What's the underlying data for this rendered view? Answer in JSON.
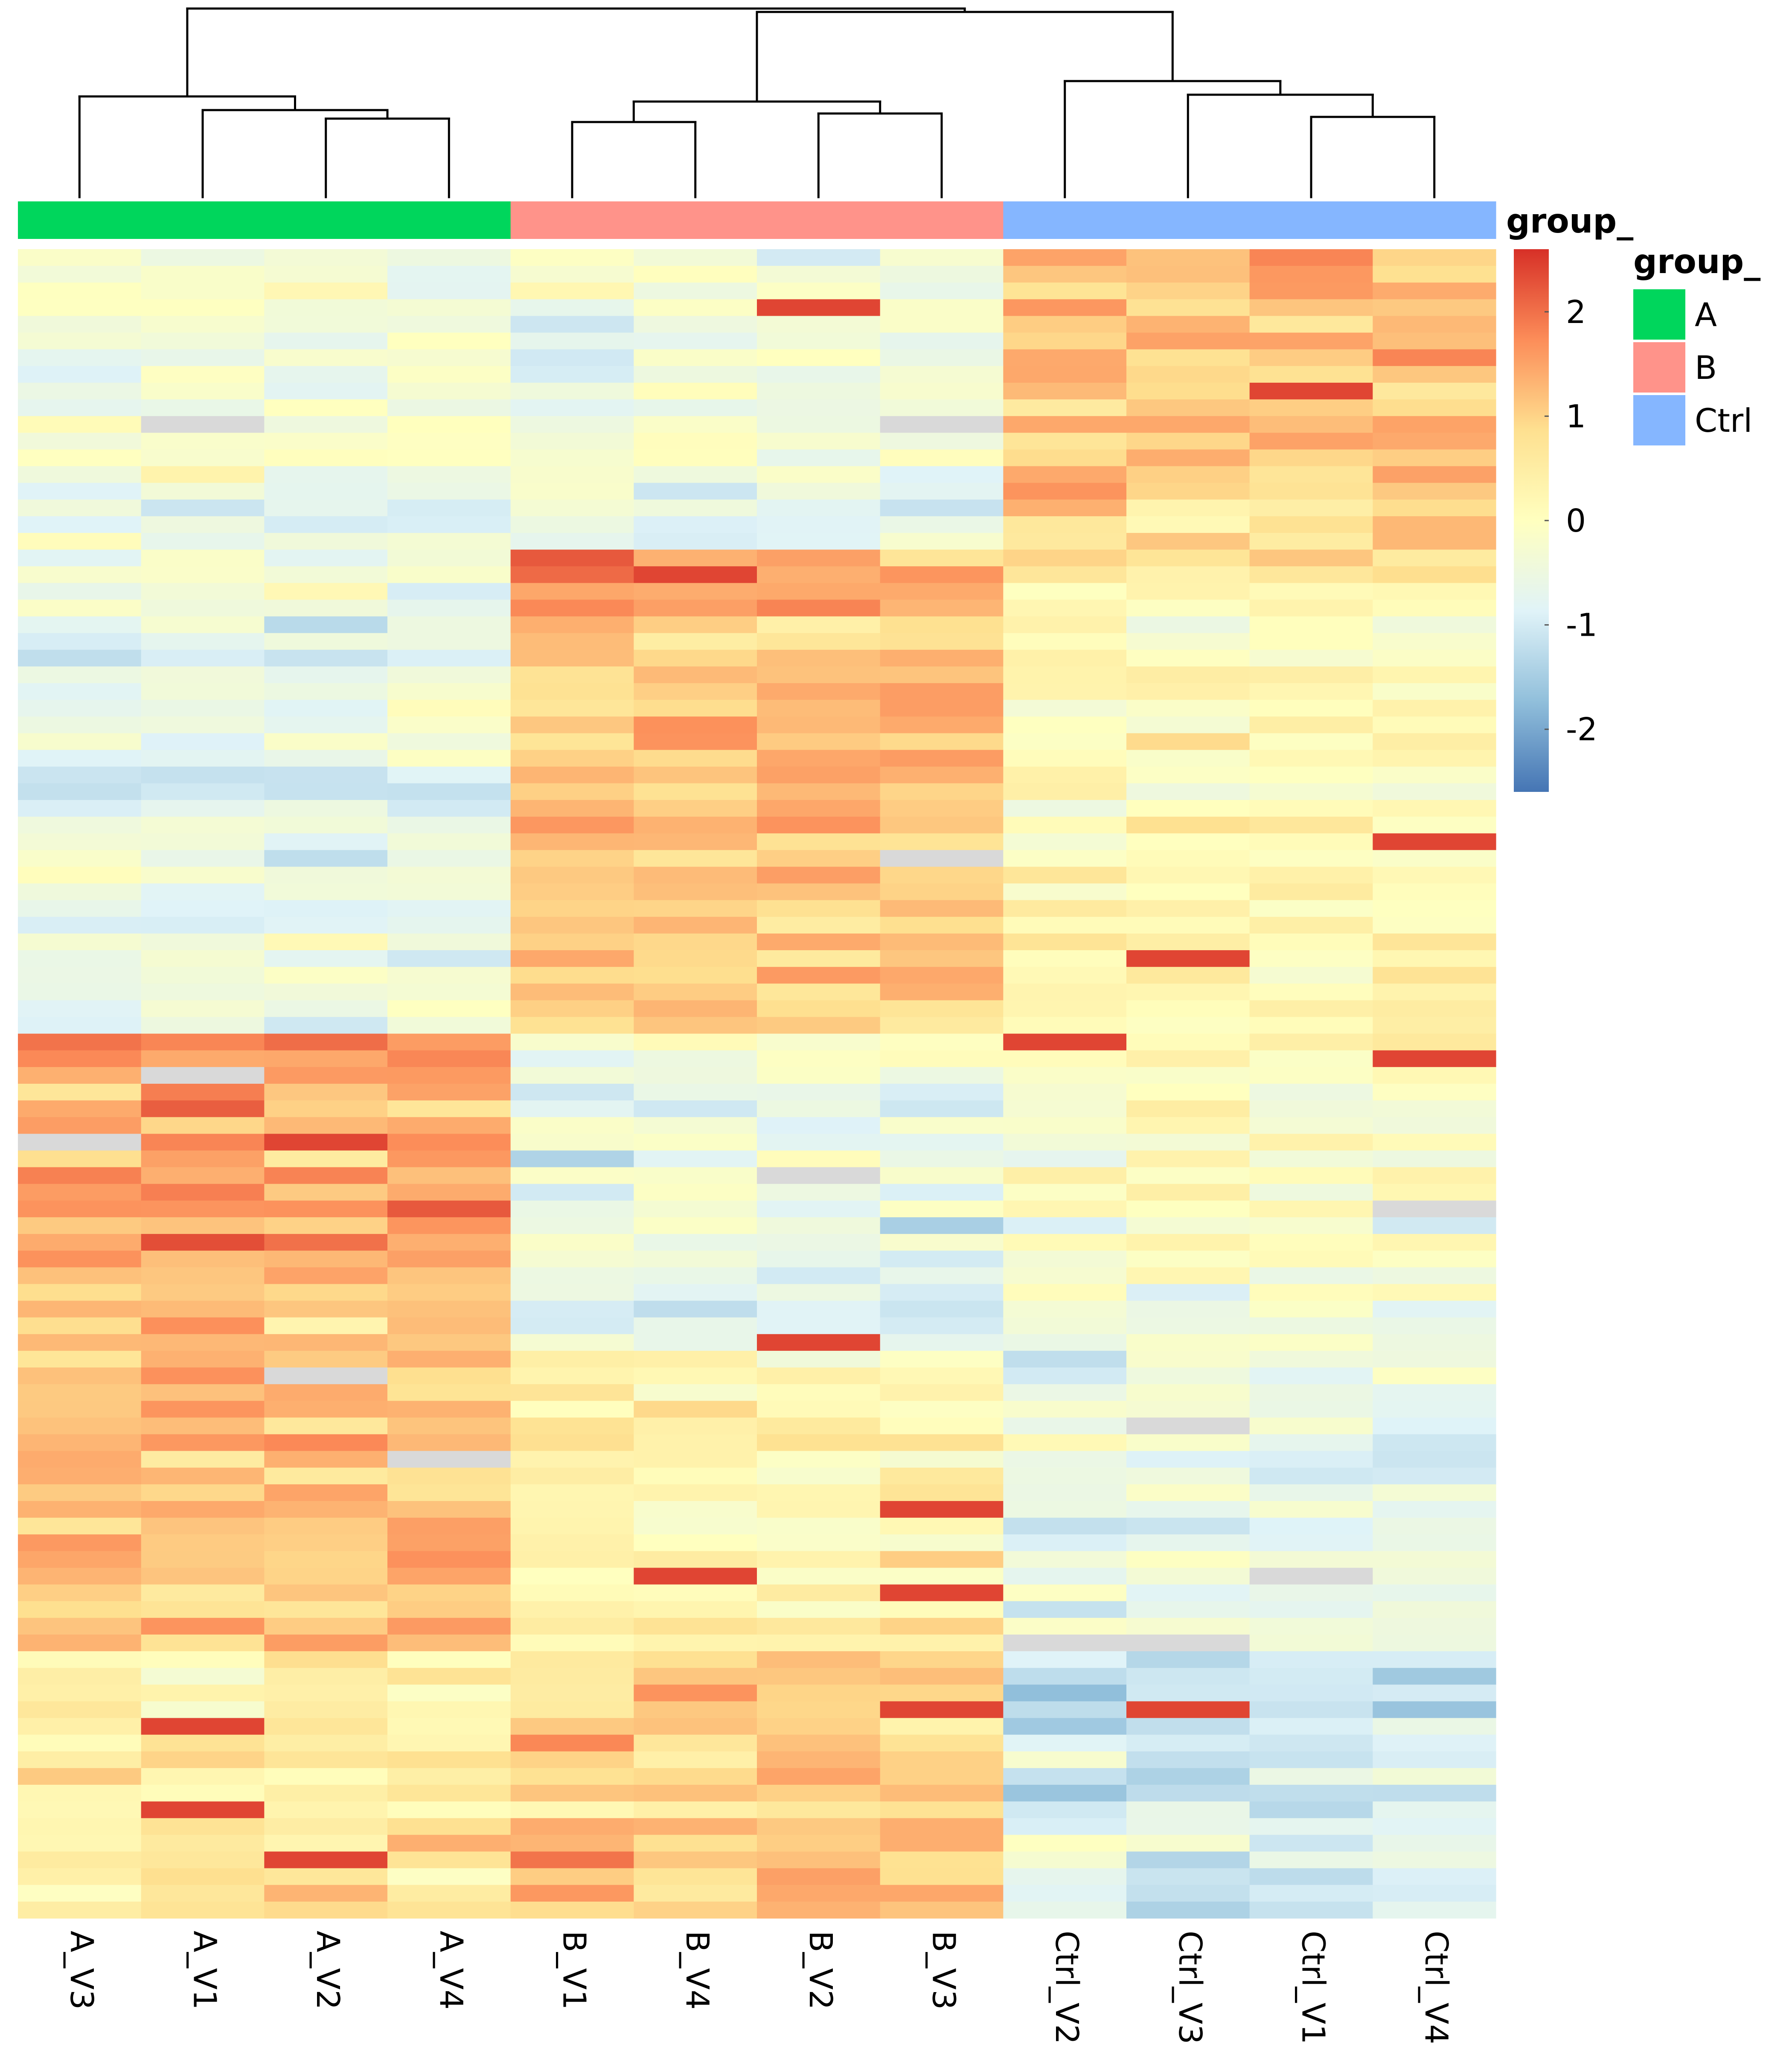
{
  "chart_data": {
    "type": "heatmap",
    "columns": [
      "A_V3",
      "A_V1",
      "A_V2",
      "A_V4",
      "B_V1",
      "B_V4",
      "B_V2",
      "B_V3",
      "Ctrl_V2",
      "Ctrl_V3",
      "Ctrl_V1",
      "Ctrl_V4"
    ],
    "column_groups": [
      "A",
      "A",
      "A",
      "A",
      "B",
      "B",
      "B",
      "B",
      "Ctrl",
      "Ctrl",
      "Ctrl",
      "Ctrl"
    ],
    "row_count": 100,
    "value_range": [
      -2.6,
      2.6
    ],
    "colorbar": {
      "ticks": [
        2,
        1,
        0,
        -1,
        -2
      ],
      "tick_labels": [
        "2",
        "1",
        "0",
        "-1",
        "-2"
      ],
      "colors": [
        "#4575b4",
        "#91bfdb",
        "#e0f3f8",
        "#ffffbf",
        "#fee090",
        "#fc8d59",
        "#d73027"
      ],
      "na_color": "#d9d9d9"
    },
    "annotation": {
      "title": "group_",
      "bar_title": "group_",
      "legend_title": "group_",
      "levels": [
        {
          "name": "A",
          "color": "#00d65c"
        },
        {
          "name": "B",
          "color": "#ff938a"
        },
        {
          "name": "Ctrl",
          "color": "#85b6ff"
        }
      ]
    },
    "column_dendrogram": {
      "merge_order": [
        [
          "A_V2",
          "A_V4"
        ],
        [
          "A_V1",
          "A_V2+A_V4"
        ],
        [
          "A_V3",
          "A_V1+A_V2+A_V4"
        ],
        [
          "B_V1",
          "B_V4"
        ],
        [
          "B_V2",
          "B_V3"
        ],
        [
          "B_V1+B_V4",
          "B_V2+B_V3"
        ],
        [
          "Ctrl_V1",
          "Ctrl_V4"
        ],
        [
          "Ctrl_V3",
          "Ctrl_V1+Ctrl_V4"
        ],
        [
          "Ctrl_V2",
          "Ctrl_V3+Ctrl_V1+Ctrl_V4"
        ],
        [
          "B",
          "Ctrl"
        ],
        [
          "A",
          "B+Ctrl"
        ]
      ]
    },
    "row_blocks": [
      {
        "rows": [
          0,
          47
        ],
        "cluster_means": {
          "A": -0.4,
          "B": -0.5,
          "Ctrl": 1.1
        }
      },
      {
        "rows": [
          18,
          47
        ],
        "cluster_means": {
          "A": -0.5,
          "B": 1.2,
          "Ctrl": 0.2
        }
      },
      {
        "rows": [
          47,
          66
        ],
        "cluster_means": {
          "A": 1.4,
          "B": -0.6,
          "Ctrl": -0.2
        }
      },
      {
        "rows": [
          66,
          84
        ],
        "cluster_means": {
          "A": 1.1,
          "B": 0.2,
          "Ctrl": -0.7
        }
      },
      {
        "rows": [
          84,
          100
        ],
        "cluster_means": {
          "A": 0.5,
          "B": 1.0,
          "Ctrl": -1.0
        }
      }
    ]
  }
}
